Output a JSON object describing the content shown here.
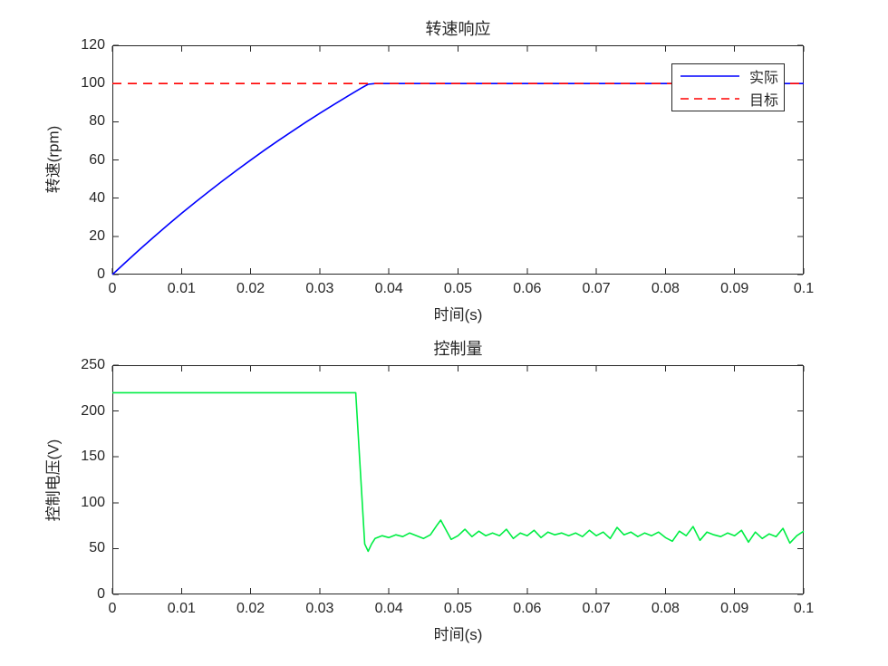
{
  "figure": {
    "background": "#ffffff",
    "text_color": "#262626",
    "axis_color": "#262626"
  },
  "chart_data": [
    {
      "type": "line",
      "title": "转速响应",
      "xlabel": "时间(s)",
      "ylabel": "转速(rpm)",
      "xlim": [
        0,
        0.1
      ],
      "ylim": [
        0,
        120
      ],
      "grid": false,
      "legend_position": "top-right",
      "xticks": [
        0,
        0.01,
        0.02,
        0.03,
        0.04,
        0.05,
        0.06,
        0.07,
        0.08,
        0.09,
        0.1
      ],
      "xtick_labels": [
        "0",
        "0.01",
        "0.02",
        "0.03",
        "0.04",
        "0.05",
        "0.06",
        "0.07",
        "0.08",
        "0.09",
        "0.1"
      ],
      "yticks": [
        0,
        20,
        40,
        60,
        80,
        100,
        120
      ],
      "legend_entries": [
        {
          "label": "实际",
          "color": "#0000ff",
          "style": "solid"
        },
        {
          "label": "目标",
          "color": "#ff0000",
          "style": "dashed"
        }
      ],
      "series": [
        {
          "id": "actual",
          "name": "实际",
          "color": "#0000ff",
          "style": "solid",
          "x": [
            0,
            0.002,
            0.004,
            0.006,
            0.008,
            0.01,
            0.012,
            0.014,
            0.016,
            0.018,
            0.02,
            0.022,
            0.024,
            0.026,
            0.028,
            0.03,
            0.032,
            0.034,
            0.036,
            0.037,
            0.038,
            0.04,
            0.045,
            0.05,
            0.055,
            0.06,
            0.065,
            0.07,
            0.075,
            0.08,
            0.085,
            0.09,
            0.095,
            0.1
          ],
          "y": [
            0,
            6.7,
            13.3,
            19.7,
            25.9,
            32,
            37.9,
            43.6,
            49.2,
            54.6,
            59.9,
            65.1,
            70.1,
            75,
            79.8,
            84.4,
            88.9,
            93.3,
            97.6,
            99.6,
            100,
            100,
            100,
            100,
            100,
            100,
            100,
            100,
            100,
            100,
            100,
            100,
            100,
            100
          ]
        },
        {
          "id": "target",
          "name": "目标",
          "color": "#ff0000",
          "style": "dashed",
          "x": [
            0,
            0.1
          ],
          "y": [
            100,
            100
          ]
        }
      ]
    },
    {
      "type": "line",
      "title": "控制量",
      "xlabel": "时间(s)",
      "ylabel": "控制电压(V)",
      "xlim": [
        0,
        0.1
      ],
      "ylim": [
        0,
        250
      ],
      "grid": false,
      "xticks": [
        0,
        0.01,
        0.02,
        0.03,
        0.04,
        0.05,
        0.06,
        0.07,
        0.08,
        0.09,
        0.1
      ],
      "xtick_labels": [
        "0",
        "0.01",
        "0.02",
        "0.03",
        "0.04",
        "0.05",
        "0.06",
        "0.07",
        "0.08",
        "0.09",
        "0.1"
      ],
      "yticks": [
        0,
        50,
        100,
        150,
        200,
        250
      ],
      "series": [
        {
          "id": "control",
          "name": "控制电压",
          "color": "#00ee44",
          "style": "solid",
          "x": [
            0,
            0.005,
            0.01,
            0.015,
            0.02,
            0.025,
            0.03,
            0.034,
            0.0352,
            0.036,
            0.0365,
            0.037,
            0.0375,
            0.038,
            0.039,
            0.04,
            0.041,
            0.042,
            0.043,
            0.044,
            0.045,
            0.046,
            0.047,
            0.0475,
            0.048,
            0.049,
            0.05,
            0.051,
            0.052,
            0.053,
            0.054,
            0.055,
            0.056,
            0.057,
            0.058,
            0.059,
            0.06,
            0.061,
            0.062,
            0.063,
            0.064,
            0.065,
            0.066,
            0.067,
            0.068,
            0.069,
            0.07,
            0.071,
            0.072,
            0.073,
            0.074,
            0.075,
            0.076,
            0.077,
            0.078,
            0.079,
            0.08,
            0.081,
            0.082,
            0.083,
            0.084,
            0.085,
            0.086,
            0.087,
            0.088,
            0.089,
            0.09,
            0.091,
            0.092,
            0.093,
            0.094,
            0.095,
            0.096,
            0.097,
            0.098,
            0.099,
            0.1
          ],
          "y": [
            220,
            220,
            220,
            220,
            220,
            220,
            220,
            220,
            220,
            118,
            55,
            47,
            55,
            61,
            64,
            62,
            65,
            63,
            67,
            64,
            61,
            65,
            76,
            81,
            74,
            60,
            64,
            71,
            63,
            69,
            64,
            67,
            64,
            71,
            61,
            67,
            64,
            70,
            62,
            68,
            65,
            67,
            64,
            67,
            63,
            70,
            64,
            68,
            61,
            73,
            65,
            68,
            63,
            67,
            64,
            68,
            62,
            58,
            69,
            64,
            74,
            59,
            68,
            65,
            63,
            67,
            64,
            70,
            57,
            68,
            61,
            66,
            63,
            72,
            56,
            64,
            69
          ]
        }
      ]
    }
  ]
}
